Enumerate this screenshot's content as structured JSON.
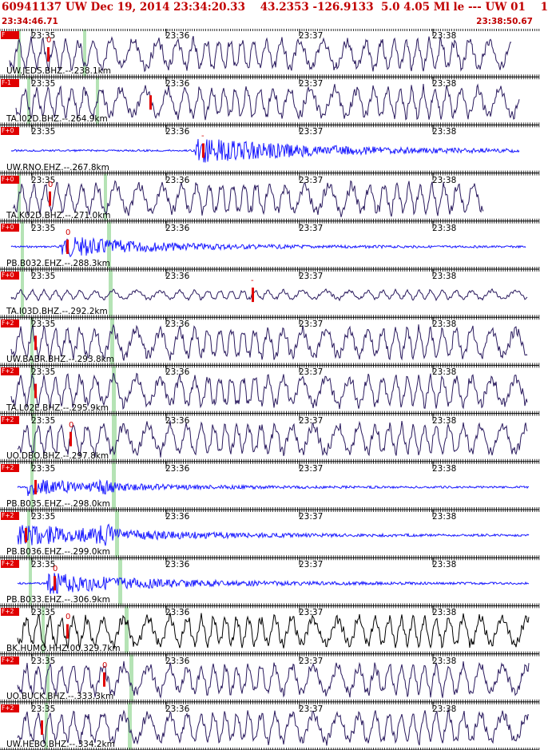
{
  "header": {
    "title": "60941137 UW Dec 19, 2014 23:34:20.33    43.2353 -126.9133  5.0 4.05 Ml le --- UW 01    1",
    "start_time": "23:34:46.71",
    "end_time": "23:38:50.67"
  },
  "colors": {
    "header_text": "#c00000",
    "trace_short_period": "#1a1aff",
    "trace_broadband": "#2a1a5e",
    "trace_black": "#000000",
    "pick_marker": "#e00000",
    "phase_window": "#b5e3b5",
    "tick_marks": "#000000"
  },
  "time_axis_labels": [
    "23:35",
    "23:36",
    "23:37",
    "23:38"
  ],
  "panels": [
    {
      "station": "UW.JEDS.BHZ.--.238.1km",
      "filter": "F",
      "trace_type": "broadband",
      "phase_label": "0"
    },
    {
      "station": "TA.I02D.BHZ.--.264.9km",
      "filter": "F-1",
      "trace_type": "broadband",
      "phase_label": ""
    },
    {
      "station": "UW.RNO.EHZ.--.267.8km",
      "filter": "F+0",
      "trace_type": "short_period",
      "phase_label": "-"
    },
    {
      "station": "TA.K02D.BHZ.--.271.0km",
      "filter": "F+0",
      "trace_type": "broadband",
      "phase_label": "0"
    },
    {
      "station": "PB.B032.EHZ.--.288.3km",
      "filter": "F+0",
      "trace_type": "short_period",
      "phase_label": "0"
    },
    {
      "station": "TA.I03D.BHZ.--.292.2km",
      "filter": "F+0",
      "trace_type": "broadband",
      "phase_label": "-"
    },
    {
      "station": "UW.BABR.BHZ.--.293.8km",
      "filter": "F+2",
      "trace_type": "broadband",
      "phase_label": ""
    },
    {
      "station": "TA.L02E.BHZ.--.295.9km",
      "filter": "F+2",
      "trace_type": "broadband",
      "phase_label": ""
    },
    {
      "station": "UO.DBO.BHZ.--.297.8km",
      "filter": "F+2",
      "trace_type": "broadband",
      "phase_label": "0"
    },
    {
      "station": "PB.B035.EHZ.--.298.0km",
      "filter": "F+2",
      "trace_type": "short_period",
      "phase_label": ""
    },
    {
      "station": "PB.B036.EHZ.--.299.0km",
      "filter": "F+2",
      "trace_type": "short_period",
      "phase_label": ""
    },
    {
      "station": "PB.B033.EHZ.--.306.9km",
      "filter": "F+2",
      "trace_type": "short_period",
      "phase_label": "0"
    },
    {
      "station": "BK.HUMO.HHZ.00.329.7km",
      "filter": "F+2",
      "trace_type": "black",
      "phase_label": "0"
    },
    {
      "station": "UO.BUCK.BHZ.--.333.3km",
      "filter": "F+2",
      "trace_type": "broadband",
      "phase_label": "0"
    },
    {
      "station": "UW.HEBO.BHZ.--.334.2km",
      "filter": "F+2",
      "trace_type": "broadband",
      "phase_label": ""
    }
  ]
}
